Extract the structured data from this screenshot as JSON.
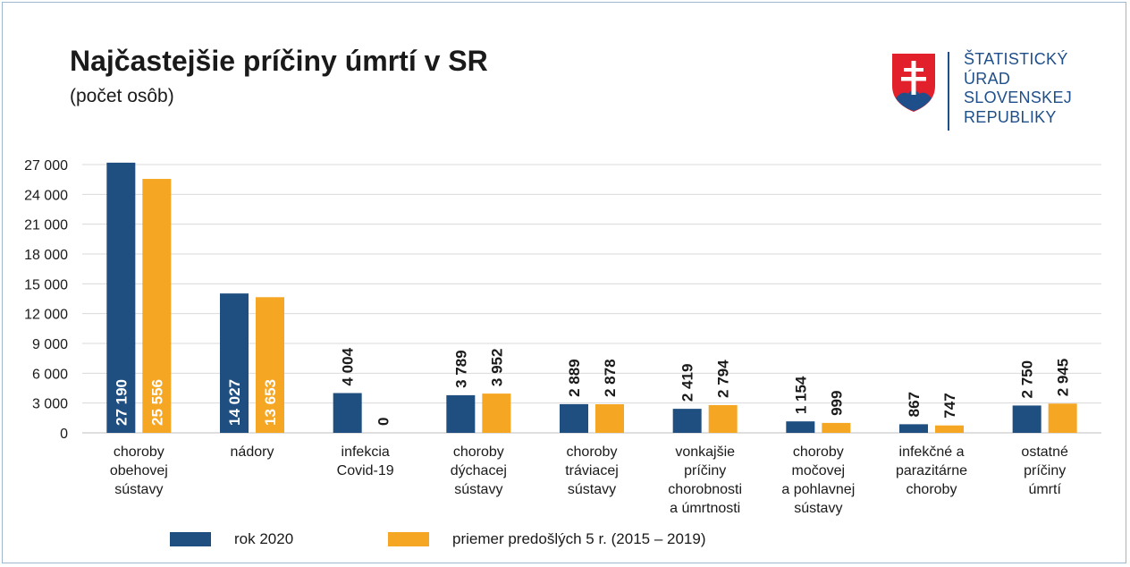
{
  "header": {
    "title": "Najčastejšie príčiny úmrtí v SR",
    "subtitle": "(počet osôb)"
  },
  "logo": {
    "lines": [
      "ŠTATISTICKÝ",
      "ÚRAD",
      "SLOVENSKEJ",
      "REPUBLIKY"
    ],
    "emblem": "slovak-coat-of-arms-icon"
  },
  "colors": {
    "series_2020": "#1f4e80",
    "series_avg": "#f5a623",
    "grid": "#d9d9d9",
    "logo_blue": "#1f4f8a",
    "emblem_red": "#e2202c"
  },
  "chart_data": {
    "type": "bar",
    "categories": [
      [
        "choroby",
        "obehovej",
        "sústavy"
      ],
      [
        "nádory"
      ],
      [
        "infekcia",
        "Covid-19"
      ],
      [
        "choroby",
        "dýchacej",
        "sústavy"
      ],
      [
        "choroby",
        "tráviacej",
        "sústavy"
      ],
      [
        "vonkajšie",
        "príčiny",
        "chorobnosti",
        "a úmrtnosti"
      ],
      [
        "choroby",
        "močovej",
        "a pohlavnej",
        "sústavy"
      ],
      [
        "infekčné a",
        "parazitárne",
        "choroby"
      ],
      [
        "ostatné",
        "príčiny",
        "úmrtí"
      ]
    ],
    "series": [
      {
        "name": "rok 2020",
        "values": [
          27190,
          14027,
          4004,
          3789,
          2889,
          2419,
          1154,
          867,
          2750
        ],
        "labels": [
          "27 190",
          "14 027",
          "4 004",
          "3 789",
          "2 889",
          "2 419",
          "1 154",
          "867",
          "2 750"
        ]
      },
      {
        "name": "priemer predošlých 5 r. (2015 – 2019)",
        "values": [
          25556,
          13653,
          0,
          3952,
          2878,
          2794,
          999,
          747,
          2945
        ],
        "labels": [
          "25 556",
          "13 653",
          "0",
          "3 952",
          "2 878",
          "2 794",
          "999",
          "747",
          "2 945"
        ]
      }
    ],
    "yticks": [
      "0",
      "3 000",
      "6 000",
      "9 000",
      "12 000",
      "15 000",
      "18 000",
      "21 000",
      "24 000",
      "27 000"
    ],
    "ylim": [
      0,
      27000
    ],
    "grid": true,
    "legend": "bottom"
  }
}
